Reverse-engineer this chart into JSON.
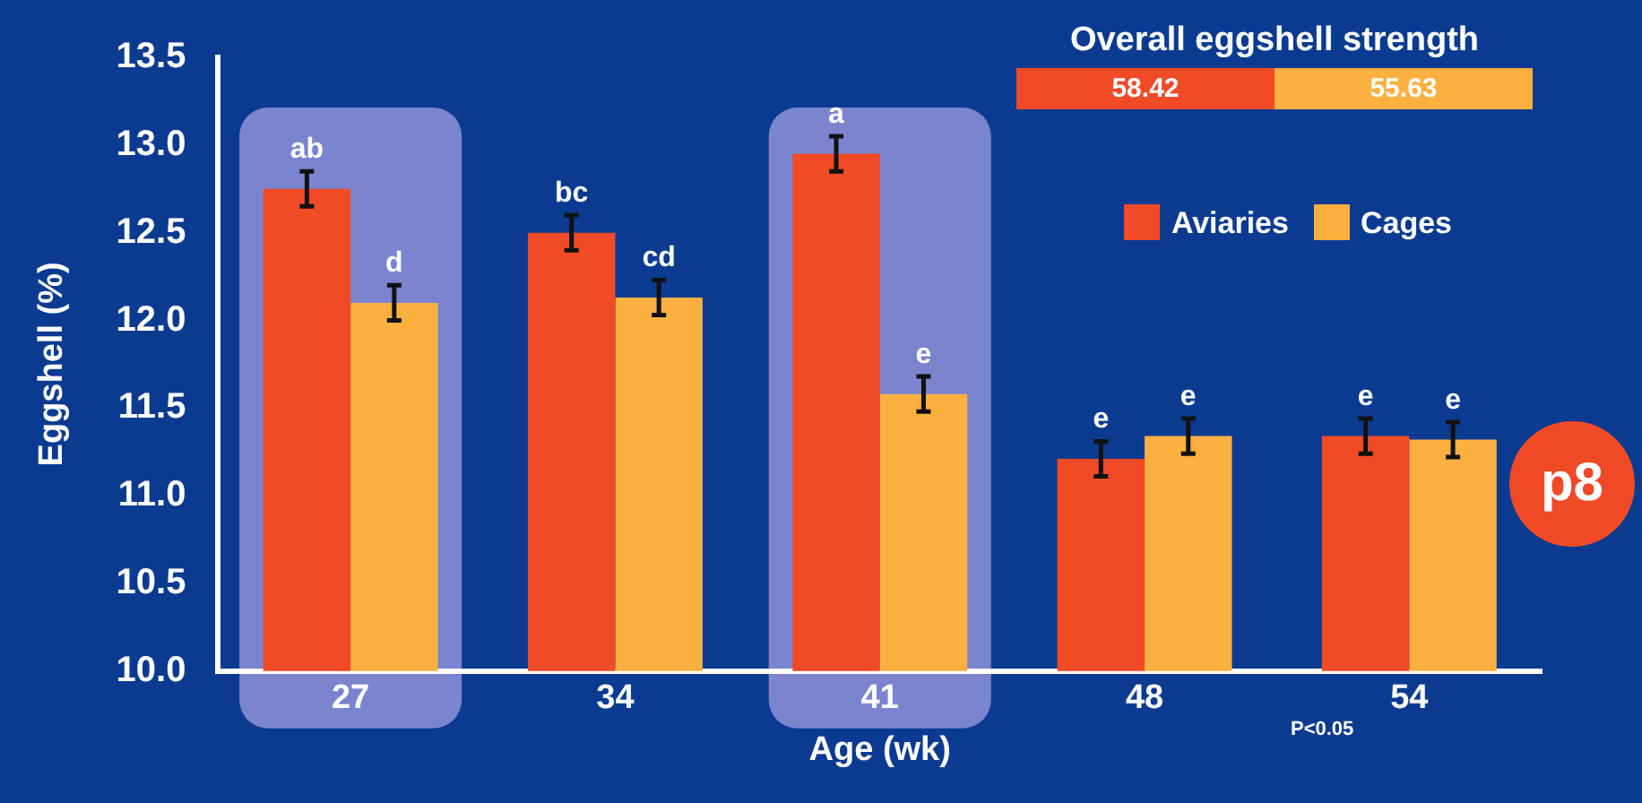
{
  "chart_data": [
    {
      "type": "bar",
      "categories": [
        "27",
        "34",
        "41",
        "48",
        "54"
      ],
      "xlabel": "Age (wk)",
      "ylabel": "Eggshell (%)",
      "series": [
        {
          "name": "Aviaries",
          "color": "#f04a26",
          "values": [
            12.75,
            12.5,
            12.95,
            11.21,
            11.34
          ],
          "errors": [
            0.1,
            0.1,
            0.1,
            0.1,
            0.1
          ],
          "value_labels": [
            "ab",
            "bc",
            "a",
            "e",
            "e"
          ]
        },
        {
          "name": "Cages",
          "color": "#fbb040",
          "values": [
            12.1,
            12.13,
            11.58,
            11.34,
            11.32
          ],
          "errors": [
            0.1,
            0.1,
            0.1,
            0.1,
            0.1
          ],
          "value_labels": [
            "d",
            "cd",
            "e",
            "e",
            "e"
          ]
        }
      ],
      "ylim": [
        10.0,
        13.5
      ],
      "yticks": [
        {
          "value": 10,
          "label": "10.0"
        },
        {
          "value": 10.5,
          "label": "10.5"
        },
        {
          "value": 11,
          "label": "11.0"
        },
        {
          "value": 11.5,
          "label": "11.5"
        },
        {
          "value": 12,
          "label": "12.0"
        },
        {
          "value": 12.5,
          "label": "12.5"
        },
        {
          "value": 13,
          "label": "13.0"
        },
        {
          "value": 13.5,
          "label": "13.5"
        }
      ],
      "bands": [
        {
          "axis": "x",
          "from": "27",
          "to": "27",
          "color": "#7b84cf"
        },
        {
          "axis": "x",
          "from": "41",
          "to": "41",
          "color": "#7b84cf"
        }
      ],
      "grid": false,
      "legend": "top right",
      "annotations": [
        "P<0.05",
        "p8"
      ]
    },
    {
      "type": "other",
      "title": "Overall eggshell strength",
      "values": [
        58.42,
        55.63
      ],
      "colors": [
        "#f04a26",
        "#fbb040"
      ],
      "data_labels": true
    }
  ]
}
